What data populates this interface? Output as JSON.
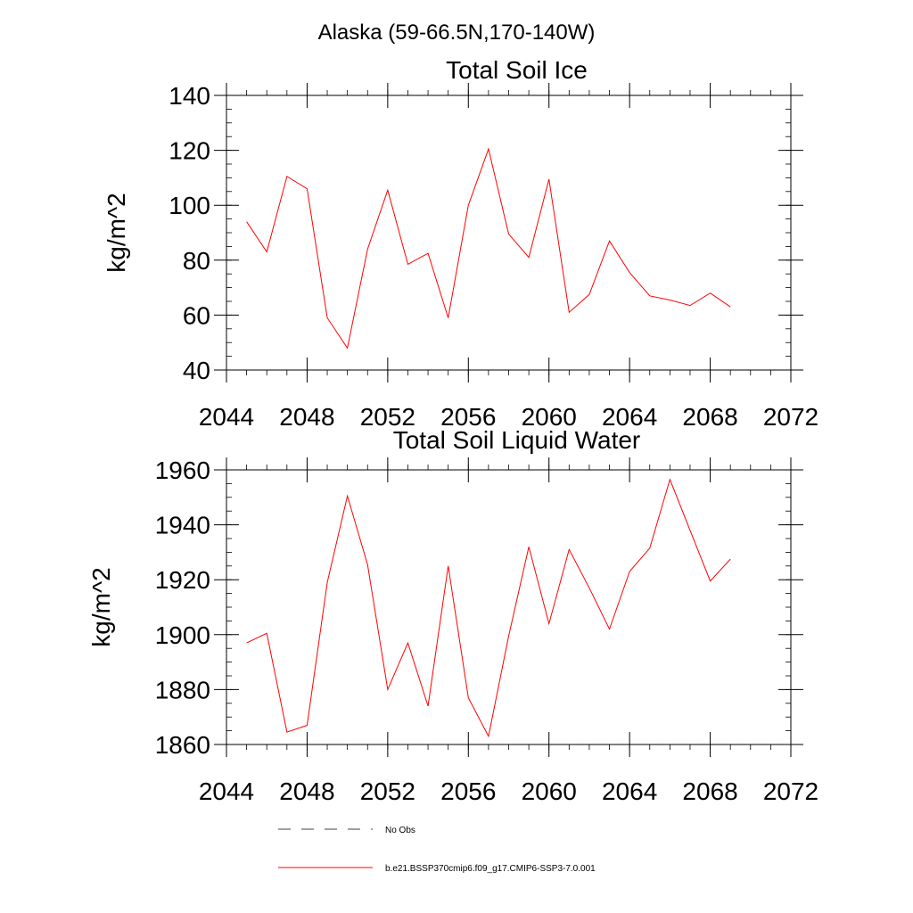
{
  "figure": {
    "suptitle": "Alaska (59-66.5N,170-140W)"
  },
  "chart_data": [
    {
      "type": "line",
      "title": "Total Soil Ice",
      "xlabel": "",
      "ylabel": "kg/m^2",
      "xlim": [
        2044,
        2072
      ],
      "ylim": [
        40,
        140
      ],
      "xticks": [
        2044,
        2048,
        2052,
        2056,
        2060,
        2064,
        2068,
        2072
      ],
      "yticks": [
        40,
        60,
        80,
        100,
        120,
        140
      ],
      "x": [
        2045,
        2046,
        2047,
        2048,
        2049,
        2050,
        2051,
        2052,
        2053,
        2054,
        2055,
        2056,
        2057,
        2058,
        2059,
        2060,
        2061,
        2062,
        2063,
        2064,
        2065,
        2066,
        2067,
        2068,
        2069
      ],
      "series": [
        {
          "name": "b.e21.BSSP370cmip6.f09_g17.CMIP6-SSP3-7.0.001",
          "color": "#ff0000",
          "values": [
            94,
            83,
            110.5,
            106,
            59,
            48,
            84,
            105.5,
            78.5,
            82.5,
            59,
            100,
            120.5,
            89.5,
            81,
            109.5,
            61,
            67.5,
            87,
            75.5,
            67,
            65.5,
            63.5,
            68,
            63
          ]
        }
      ]
    },
    {
      "type": "line",
      "title": "Total Soil Liquid Water",
      "xlabel": "",
      "ylabel": "kg/m^2",
      "xlim": [
        2044,
        2072
      ],
      "ylim": [
        1860,
        1960
      ],
      "xticks": [
        2044,
        2048,
        2052,
        2056,
        2060,
        2064,
        2068,
        2072
      ],
      "yticks": [
        1860,
        1880,
        1900,
        1920,
        1940,
        1960
      ],
      "x": [
        2045,
        2046,
        2047,
        2048,
        2049,
        2050,
        2051,
        2052,
        2053,
        2054,
        2055,
        2056,
        2057,
        2058,
        2059,
        2060,
        2061,
        2062,
        2063,
        2064,
        2065,
        2066,
        2067,
        2068,
        2069
      ],
      "series": [
        {
          "name": "b.e21.BSSP370cmip6.f09_g17.CMIP6-SSP3-7.0.001",
          "color": "#ff0000",
          "values": [
            1897,
            1900.5,
            1864.5,
            1867,
            1919,
            1950.5,
            1925.5,
            1880,
            1897,
            1874,
            1925,
            1877,
            1863,
            1899.5,
            1932,
            1904,
            1931,
            1917,
            1902,
            1923,
            1931.5,
            1956.5,
            1938,
            1919.5,
            1927.5
          ]
        }
      ]
    }
  ],
  "legend": {
    "placement": "bottom",
    "entries": [
      {
        "label": "No Obs",
        "style": "dashed",
        "color": "#000000"
      },
      {
        "label": "b.e21.BSSP370cmip6.f09_g17.CMIP6-SSP3-7.0.001",
        "style": "solid",
        "color": "#ff0000"
      }
    ]
  }
}
